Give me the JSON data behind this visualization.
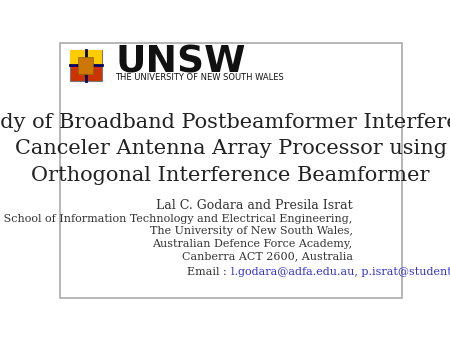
{
  "background_color": "#ffffff",
  "border_color": "#aaaaaa",
  "title_lines": [
    "Study of Broadband Postbeamformer Interference",
    "Canceler Antenna Array Processor using",
    "Orthogonal Interference Beamformer"
  ],
  "title_fontsize": 15.0,
  "title_color": "#222222",
  "author_line": "Lal C. Godara and Presila Israt",
  "affil_lines": [
    "The School of Information Technology and Electrical Engineering,",
    "The University of New South Wales,",
    "Australian Defence Force Academy,",
    "Canberra ACT 2600, Australia"
  ],
  "email_prefix": "Email : ",
  "email_text": "l.godara@adfa.edu.au, p.israt@student.adfa.edu.au",
  "email_color": "#3333cc",
  "text_color": "#333333",
  "affil_fontsize": 8.0,
  "author_fontsize": 9.0,
  "unsw_text": "UNSW",
  "unsw_subtitle": "THE UNIVERSITY OF NEW SOUTH WALES",
  "unsw_fontsize": 27,
  "unsw_subtitle_fontsize": 6.0,
  "unsw_color": "#111111",
  "figsize": [
    4.5,
    3.38
  ],
  "dpi": 100
}
